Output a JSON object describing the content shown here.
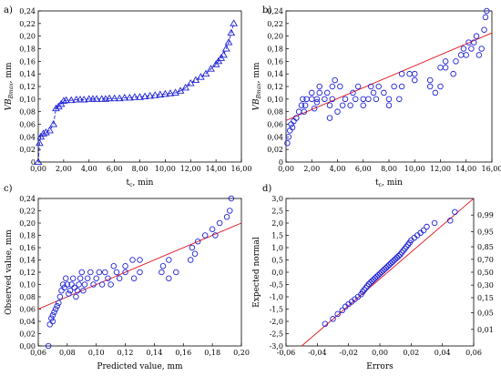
{
  "colors": {
    "marker": "#1f23d6",
    "fit": "#e0141e",
    "axis": "#000000"
  },
  "chart_data": [
    {
      "panel": "a)",
      "type": "line",
      "marker": "triangle",
      "xlabel_main": "t",
      "xlabel_sub": "c",
      "xlabel_unit": ", min",
      "ylabel_main": "VB",
      "ylabel_sub": "Bmax",
      "ylabel_unit": ", mm",
      "xlim": [
        0,
        16
      ],
      "ylim": [
        0,
        0.24
      ],
      "xticks": [
        "0,00",
        "2,00",
        "4,00",
        "6,00",
        "8,00",
        "10,00",
        "12,00",
        "14,00",
        "16,00"
      ],
      "yticks": [
        "0",
        "0,02",
        "0,04",
        "0,06",
        "0,08",
        "0,10",
        "0,12",
        "0,14",
        "0,16",
        "0,18",
        "0,20",
        "0,22",
        "0,24"
      ],
      "x": [
        0.0,
        0.1,
        0.2,
        0.4,
        0.6,
        0.9,
        1.2,
        1.4,
        1.6,
        1.8,
        2.0,
        2.2,
        2.6,
        3.0,
        3.3,
        3.6,
        4.0,
        4.3,
        4.6,
        5.0,
        5.3,
        5.6,
        6.0,
        6.4,
        6.8,
        7.2,
        7.6,
        8.0,
        8.4,
        8.8,
        9.2,
        9.6,
        10.0,
        10.4,
        10.8,
        11.2,
        11.6,
        12.0,
        12.4,
        12.8,
        13.2,
        13.6,
        14.0,
        14.2,
        14.4,
        14.6,
        14.8,
        15.0,
        15.2,
        15.4
      ],
      "y": [
        0.0,
        0.03,
        0.04,
        0.045,
        0.047,
        0.05,
        0.06,
        0.085,
        0.088,
        0.092,
        0.097,
        0.098,
        0.098,
        0.099,
        0.099,
        0.099,
        0.1,
        0.1,
        0.1,
        0.1,
        0.1,
        0.101,
        0.101,
        0.101,
        0.102,
        0.102,
        0.103,
        0.103,
        0.104,
        0.105,
        0.106,
        0.107,
        0.108,
        0.109,
        0.11,
        0.113,
        0.118,
        0.125,
        0.13,
        0.135,
        0.14,
        0.148,
        0.155,
        0.16,
        0.165,
        0.17,
        0.18,
        0.19,
        0.205,
        0.22
      ]
    },
    {
      "panel": "b)",
      "type": "scatter",
      "marker": "circle",
      "xlabel_main": "t",
      "xlabel_sub": "c",
      "xlabel_unit": ", min",
      "ylabel_main": "VB",
      "ylabel_sub": "Bmax",
      "ylabel_unit": ", mm",
      "xlim": [
        0,
        16
      ],
      "ylim": [
        0,
        0.24
      ],
      "xticks": [
        "0,00",
        "2,00",
        "4,00",
        "6,00",
        "8,00",
        "10,00",
        "12,00",
        "14,00",
        "16,00"
      ],
      "yticks": [
        "0",
        "0,02",
        "0,04",
        "0,06",
        "0,08",
        "0,10",
        "0,12",
        "0,14",
        "0,16",
        "0,18",
        "0,20",
        "0,22",
        "0,24"
      ],
      "fit_line": {
        "x": [
          0,
          16
        ],
        "y": [
          0.066,
          0.205
        ]
      },
      "x": [
        0.1,
        0.2,
        0.3,
        0.4,
        0.5,
        0.6,
        0.8,
        1.0,
        1.2,
        1.3,
        1.4,
        1.5,
        1.6,
        2.0,
        2.0,
        2.2,
        2.4,
        2.4,
        2.6,
        2.6,
        3.0,
        3.2,
        3.4,
        3.4,
        3.6,
        3.6,
        3.8,
        4.0,
        4.2,
        4.4,
        4.6,
        5.0,
        5.2,
        5.4,
        5.6,
        6.0,
        6.0,
        6.4,
        6.6,
        6.8,
        7.0,
        7.2,
        7.6,
        8.0,
        8.0,
        8.4,
        8.8,
        9.0,
        9.0,
        9.6,
        10.0,
        10.0,
        11.2,
        11.2,
        11.6,
        12.0,
        12.0,
        12.4,
        12.4,
        13.0,
        13.2,
        13.6,
        13.8,
        14.0,
        14.2,
        14.4,
        14.6,
        14.8,
        15.0,
        15.2,
        15.4,
        15.5,
        15.6
      ],
      "y": [
        0.03,
        0.04,
        0.05,
        0.06,
        0.055,
        0.065,
        0.07,
        0.08,
        0.09,
        0.1,
        0.08,
        0.09,
        0.1,
        0.1,
        0.11,
        0.085,
        0.095,
        0.1,
        0.11,
        0.12,
        0.1,
        0.11,
        0.07,
        0.09,
        0.1,
        0.12,
        0.13,
        0.08,
        0.12,
        0.09,
        0.1,
        0.09,
        0.11,
        0.1,
        0.12,
        0.09,
        0.1,
        0.1,
        0.12,
        0.11,
        0.1,
        0.12,
        0.11,
        0.09,
        0.1,
        0.12,
        0.1,
        0.12,
        0.14,
        0.14,
        0.13,
        0.14,
        0.13,
        0.12,
        0.11,
        0.12,
        0.15,
        0.16,
        0.15,
        0.14,
        0.16,
        0.17,
        0.18,
        0.17,
        0.19,
        0.18,
        0.19,
        0.2,
        0.17,
        0.18,
        0.21,
        0.23,
        0.24
      ]
    },
    {
      "panel": "c)",
      "type": "scatter",
      "marker": "circle",
      "xlabel": "Predicted value, mm",
      "ylabel": "Observed value, mm",
      "xlim": [
        0.06,
        0.2
      ],
      "ylim": [
        0,
        0.24
      ],
      "xticks": [
        "0,06",
        "0,08",
        "0,10",
        "0,12",
        "0,14",
        "0,16",
        "0,18",
        "0,20"
      ],
      "yticks": [
        "0,00",
        "0,02",
        "0,04",
        "0,06",
        "0,08",
        "0,10",
        "0,12",
        "0,14",
        "0,16",
        "0,18",
        "0,20",
        "0,22",
        "0,24"
      ],
      "fit_line": {
        "x": [
          0.06,
          0.2
        ],
        "y": [
          0.06,
          0.2
        ]
      },
      "x": [
        0.067,
        0.068,
        0.069,
        0.07,
        0.07,
        0.071,
        0.072,
        0.073,
        0.074,
        0.075,
        0.076,
        0.077,
        0.078,
        0.079,
        0.08,
        0.081,
        0.082,
        0.083,
        0.084,
        0.085,
        0.086,
        0.087,
        0.088,
        0.089,
        0.09,
        0.091,
        0.092,
        0.094,
        0.096,
        0.098,
        0.1,
        0.102,
        0.104,
        0.106,
        0.108,
        0.11,
        0.112,
        0.114,
        0.116,
        0.12,
        0.12,
        0.125,
        0.126,
        0.13,
        0.13,
        0.145,
        0.146,
        0.15,
        0.15,
        0.155,
        0.165,
        0.166,
        0.168,
        0.17,
        0.175,
        0.18,
        0.182,
        0.185,
        0.19,
        0.192,
        0.193
      ],
      "y": [
        0.0,
        0.035,
        0.045,
        0.04,
        0.05,
        0.055,
        0.06,
        0.065,
        0.07,
        0.08,
        0.09,
        0.1,
        0.095,
        0.11,
        0.1,
        0.085,
        0.09,
        0.1,
        0.11,
        0.095,
        0.08,
        0.09,
        0.1,
        0.11,
        0.12,
        0.09,
        0.1,
        0.11,
        0.12,
        0.1,
        0.11,
        0.12,
        0.1,
        0.12,
        0.11,
        0.1,
        0.13,
        0.12,
        0.11,
        0.12,
        0.13,
        0.14,
        0.11,
        0.12,
        0.14,
        0.12,
        0.13,
        0.14,
        0.11,
        0.12,
        0.14,
        0.16,
        0.15,
        0.17,
        0.18,
        0.19,
        0.18,
        0.2,
        0.21,
        0.22,
        0.24
      ]
    },
    {
      "panel": "d)",
      "type": "scatter",
      "marker": "circle",
      "xlabel": "Errors",
      "ylabel": "Expected normal",
      "xlim": [
        -0.06,
        0.06
      ],
      "ylim": [
        -3.0,
        3.0
      ],
      "xticks": [
        "-0,06",
        "-0,04",
        "-0,02",
        "0,00",
        "0,02",
        "0,04",
        "0,06"
      ],
      "yticks": [
        "-3,0",
        "-2,5",
        "-2,0",
        "-1,5",
        "-1,0",
        "-0,5",
        "0,0",
        "0,5",
        "1,0",
        "1,5",
        "2,0",
        "2,5",
        "3,0"
      ],
      "right_ticks": [
        "0,01",
        "0,05",
        "0,15",
        "0,30",
        "0,50",
        "0,70",
        "0,85",
        "0,95",
        "0,99"
      ],
      "fit_line": {
        "x": [
          -0.05,
          0.06
        ],
        "y": [
          -3.0,
          3.0
        ]
      },
      "x": [
        -0.035,
        -0.03,
        -0.027,
        -0.024,
        -0.022,
        -0.02,
        -0.018,
        -0.016,
        -0.014,
        -0.012,
        -0.011,
        -0.01,
        -0.009,
        -0.008,
        -0.007,
        -0.006,
        -0.005,
        -0.004,
        -0.003,
        -0.002,
        -0.001,
        0.0,
        0.001,
        0.002,
        0.003,
        0.004,
        0.005,
        0.006,
        0.007,
        0.008,
        0.009,
        0.01,
        0.011,
        0.012,
        0.013,
        0.014,
        0.015,
        0.016,
        0.017,
        0.018,
        0.019,
        0.02,
        0.022,
        0.024,
        0.026,
        0.028,
        0.03,
        0.035,
        0.045,
        0.048
      ],
      "y": [
        -2.1,
        -1.9,
        -1.7,
        -1.55,
        -1.4,
        -1.3,
        -1.2,
        -1.1,
        -1.0,
        -0.9,
        -0.8,
        -0.72,
        -0.64,
        -0.56,
        -0.48,
        -0.42,
        -0.36,
        -0.3,
        -0.24,
        -0.18,
        -0.12,
        -0.06,
        0.0,
        0.06,
        0.12,
        0.18,
        0.24,
        0.3,
        0.36,
        0.42,
        0.48,
        0.54,
        0.6,
        0.66,
        0.72,
        0.8,
        0.88,
        0.96,
        1.04,
        1.12,
        1.2,
        1.3,
        1.4,
        1.5,
        1.6,
        1.7,
        1.85,
        2.0,
        2.1,
        2.45
      ]
    }
  ]
}
